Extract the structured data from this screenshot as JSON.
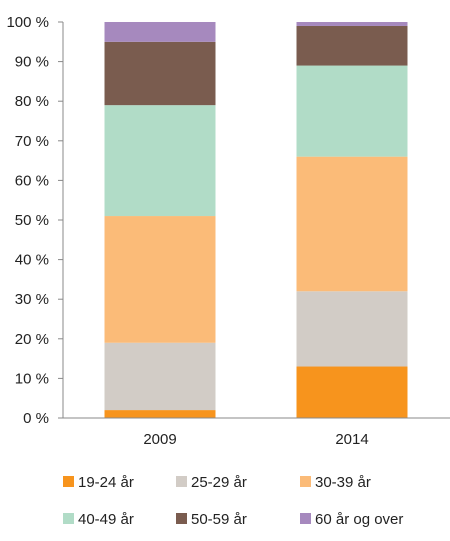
{
  "chart_data": {
    "type": "bar",
    "stacked": true,
    "percent": true,
    "categories": [
      "2009",
      "2014"
    ],
    "series": [
      {
        "name": "19-24 år",
        "color": "#f7941d",
        "values": [
          2,
          13
        ]
      },
      {
        "name": "25-29 år",
        "color": "#d2ccc6",
        "values": [
          17,
          19
        ]
      },
      {
        "name": "30-39 år",
        "color": "#fbbb78",
        "values": [
          32,
          34
        ]
      },
      {
        "name": "40-49 år",
        "color": "#b1dcc7",
        "values": [
          28,
          23
        ]
      },
      {
        "name": "50-59 år",
        "color": "#7a5c4f",
        "values": [
          16,
          10
        ]
      },
      {
        "name": "60 år og over",
        "color": "#a689be",
        "values": [
          5,
          1
        ]
      }
    ],
    "yticks": [
      "0 %",
      "10 %",
      "20 %",
      "30 %",
      "40 %",
      "50 %",
      "60 %",
      "70 %",
      "80 %",
      "90 %",
      "100 %"
    ],
    "ylim": [
      0,
      100
    ],
    "grid": false,
    "legend_position": "bottom",
    "title": "",
    "xlabel": "",
    "ylabel": ""
  }
}
